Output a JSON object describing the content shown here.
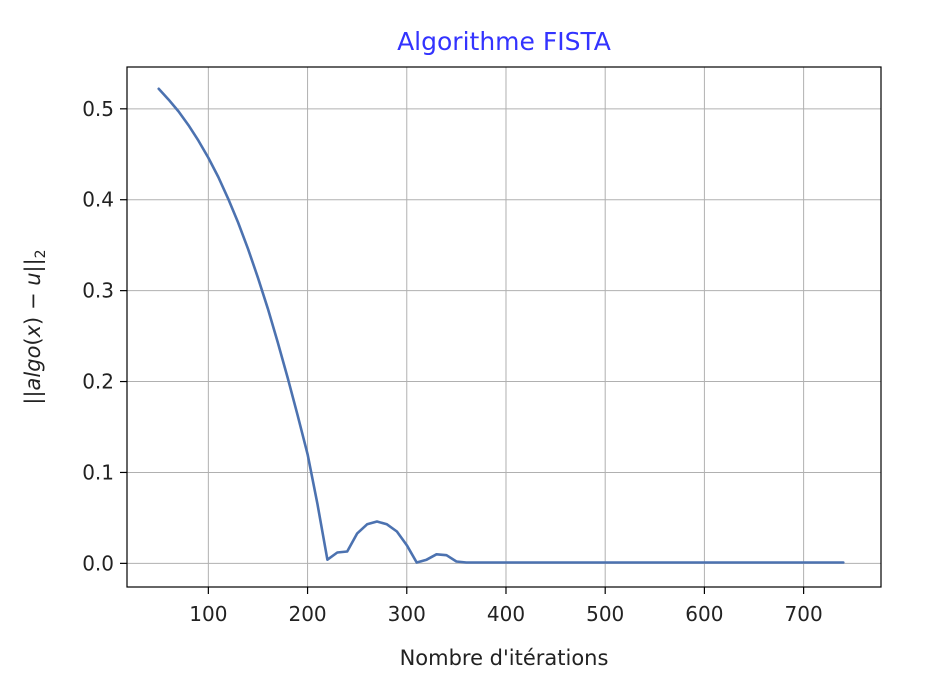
{
  "chart_data": {
    "type": "line",
    "title": "Algorithme FISTA",
    "title_color": "#3333ff",
    "xlabel": "Nombre d'itérations",
    "ylabel": {
      "prefix": "||",
      "italic": "algo",
      "paren_open": "(",
      "var": "x",
      "paren_close": ")",
      "minus": " − ",
      "var2": "u",
      "suffix": "||",
      "subscript": "2"
    },
    "xlim": [
      18,
      778
    ],
    "ylim": [
      -0.026,
      0.546
    ],
    "xticks": [
      100,
      200,
      300,
      400,
      500,
      600,
      700
    ],
    "xtick_labels": [
      "100",
      "200",
      "300",
      "400",
      "500",
      "600",
      "700"
    ],
    "yticks": [
      0.0,
      0.1,
      0.2,
      0.3,
      0.4,
      0.5
    ],
    "ytick_labels": [
      "0.0",
      "0.1",
      "0.2",
      "0.3",
      "0.4",
      "0.5"
    ],
    "grid": true,
    "series": [
      {
        "color": "#4c72b0",
        "x": [
          50,
          60,
          70,
          80,
          90,
          100,
          110,
          120,
          130,
          140,
          150,
          160,
          170,
          180,
          190,
          200,
          210,
          220,
          230,
          240,
          250,
          260,
          270,
          280,
          290,
          300,
          310,
          320,
          330,
          340,
          350,
          360,
          400,
          500,
          600,
          700,
          740
        ],
        "y": [
          0.522,
          0.51,
          0.497,
          0.482,
          0.465,
          0.446,
          0.425,
          0.401,
          0.375,
          0.346,
          0.314,
          0.28,
          0.243,
          0.204,
          0.163,
          0.12,
          0.065,
          0.004,
          0.012,
          0.013,
          0.033,
          0.043,
          0.046,
          0.043,
          0.035,
          0.02,
          0.001,
          0.004,
          0.01,
          0.009,
          0.002,
          0.001,
          0.001,
          0.001,
          0.001,
          0.001,
          0.001
        ]
      }
    ]
  }
}
